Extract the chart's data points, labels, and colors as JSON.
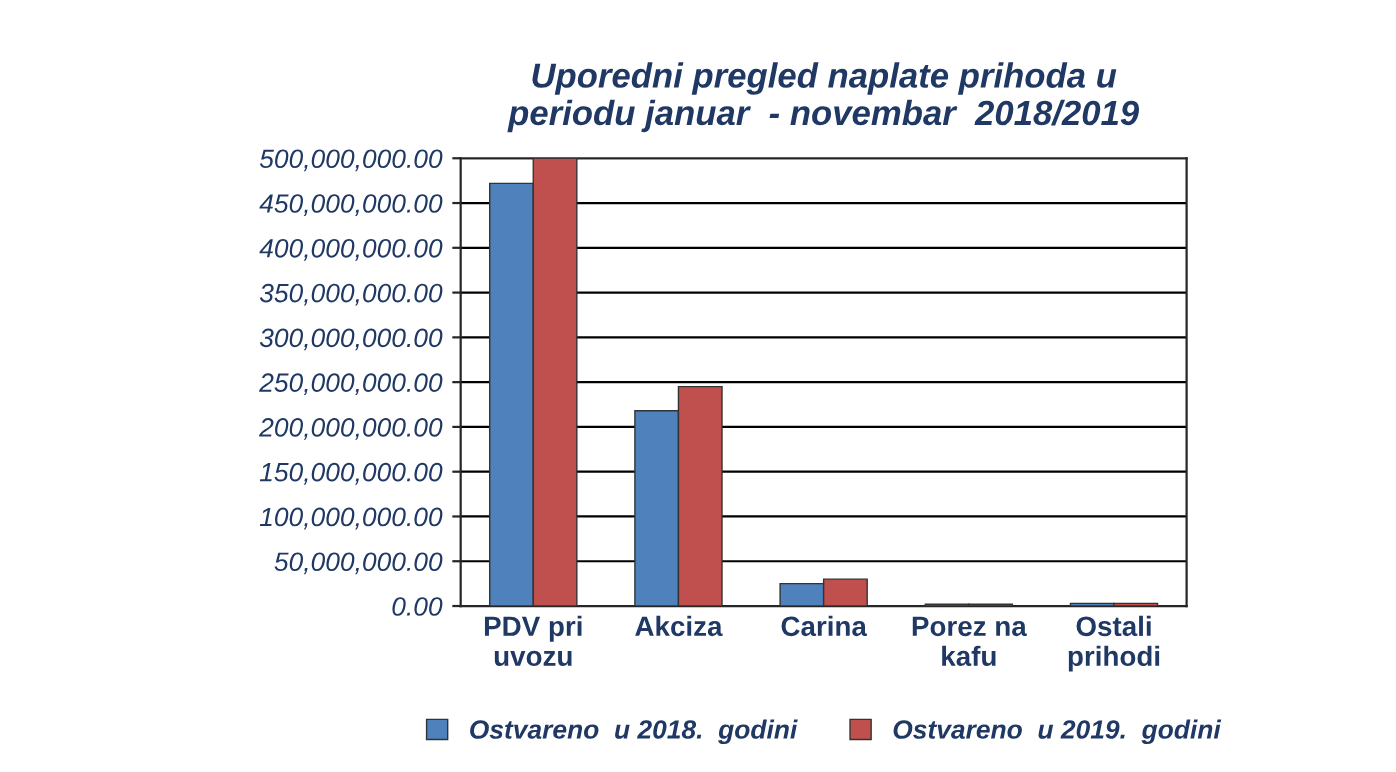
{
  "chart_data": {
    "type": "bar",
    "title": "Uporedni pregled naplate prihoda u\nperiodu januar  - novembar  2018/2019",
    "categories": [
      "PDV pri\nuvozu",
      "Akciza",
      "Carina",
      "Porez na\nkafu",
      "Ostali\nprihodi"
    ],
    "series": [
      {
        "name": "Ostvareno  u 2018.  godini",
        "color": "#4f81bd",
        "values": [
          472000000,
          218000000,
          25000000,
          2000000,
          3000000
        ]
      },
      {
        "name": "Ostvareno  u 2019.  godini",
        "color": "#c0504d",
        "values": [
          500000000,
          245000000,
          30000000,
          2000000,
          3000000
        ]
      }
    ],
    "ylim": [
      0,
      500000000
    ],
    "yticks": [
      {
        "value": 0,
        "label": "0.00"
      },
      {
        "value": 50000000,
        "label": "50,000,000.00"
      },
      {
        "value": 100000000,
        "label": "100,000,000.00"
      },
      {
        "value": 150000000,
        "label": "150,000,000.00"
      },
      {
        "value": 200000000,
        "label": "200,000,000.00"
      },
      {
        "value": 250000000,
        "label": "250,000,000.00"
      },
      {
        "value": 300000000,
        "label": "300,000,000.00"
      },
      {
        "value": 350000000,
        "label": "350,000,000.00"
      },
      {
        "value": 400000000,
        "label": "400,000,000.00"
      },
      {
        "value": 450000000,
        "label": "450,000,000.00"
      },
      {
        "value": 500000000,
        "label": "500,000,000.00"
      }
    ],
    "grid": "y",
    "legend": "bottom"
  }
}
